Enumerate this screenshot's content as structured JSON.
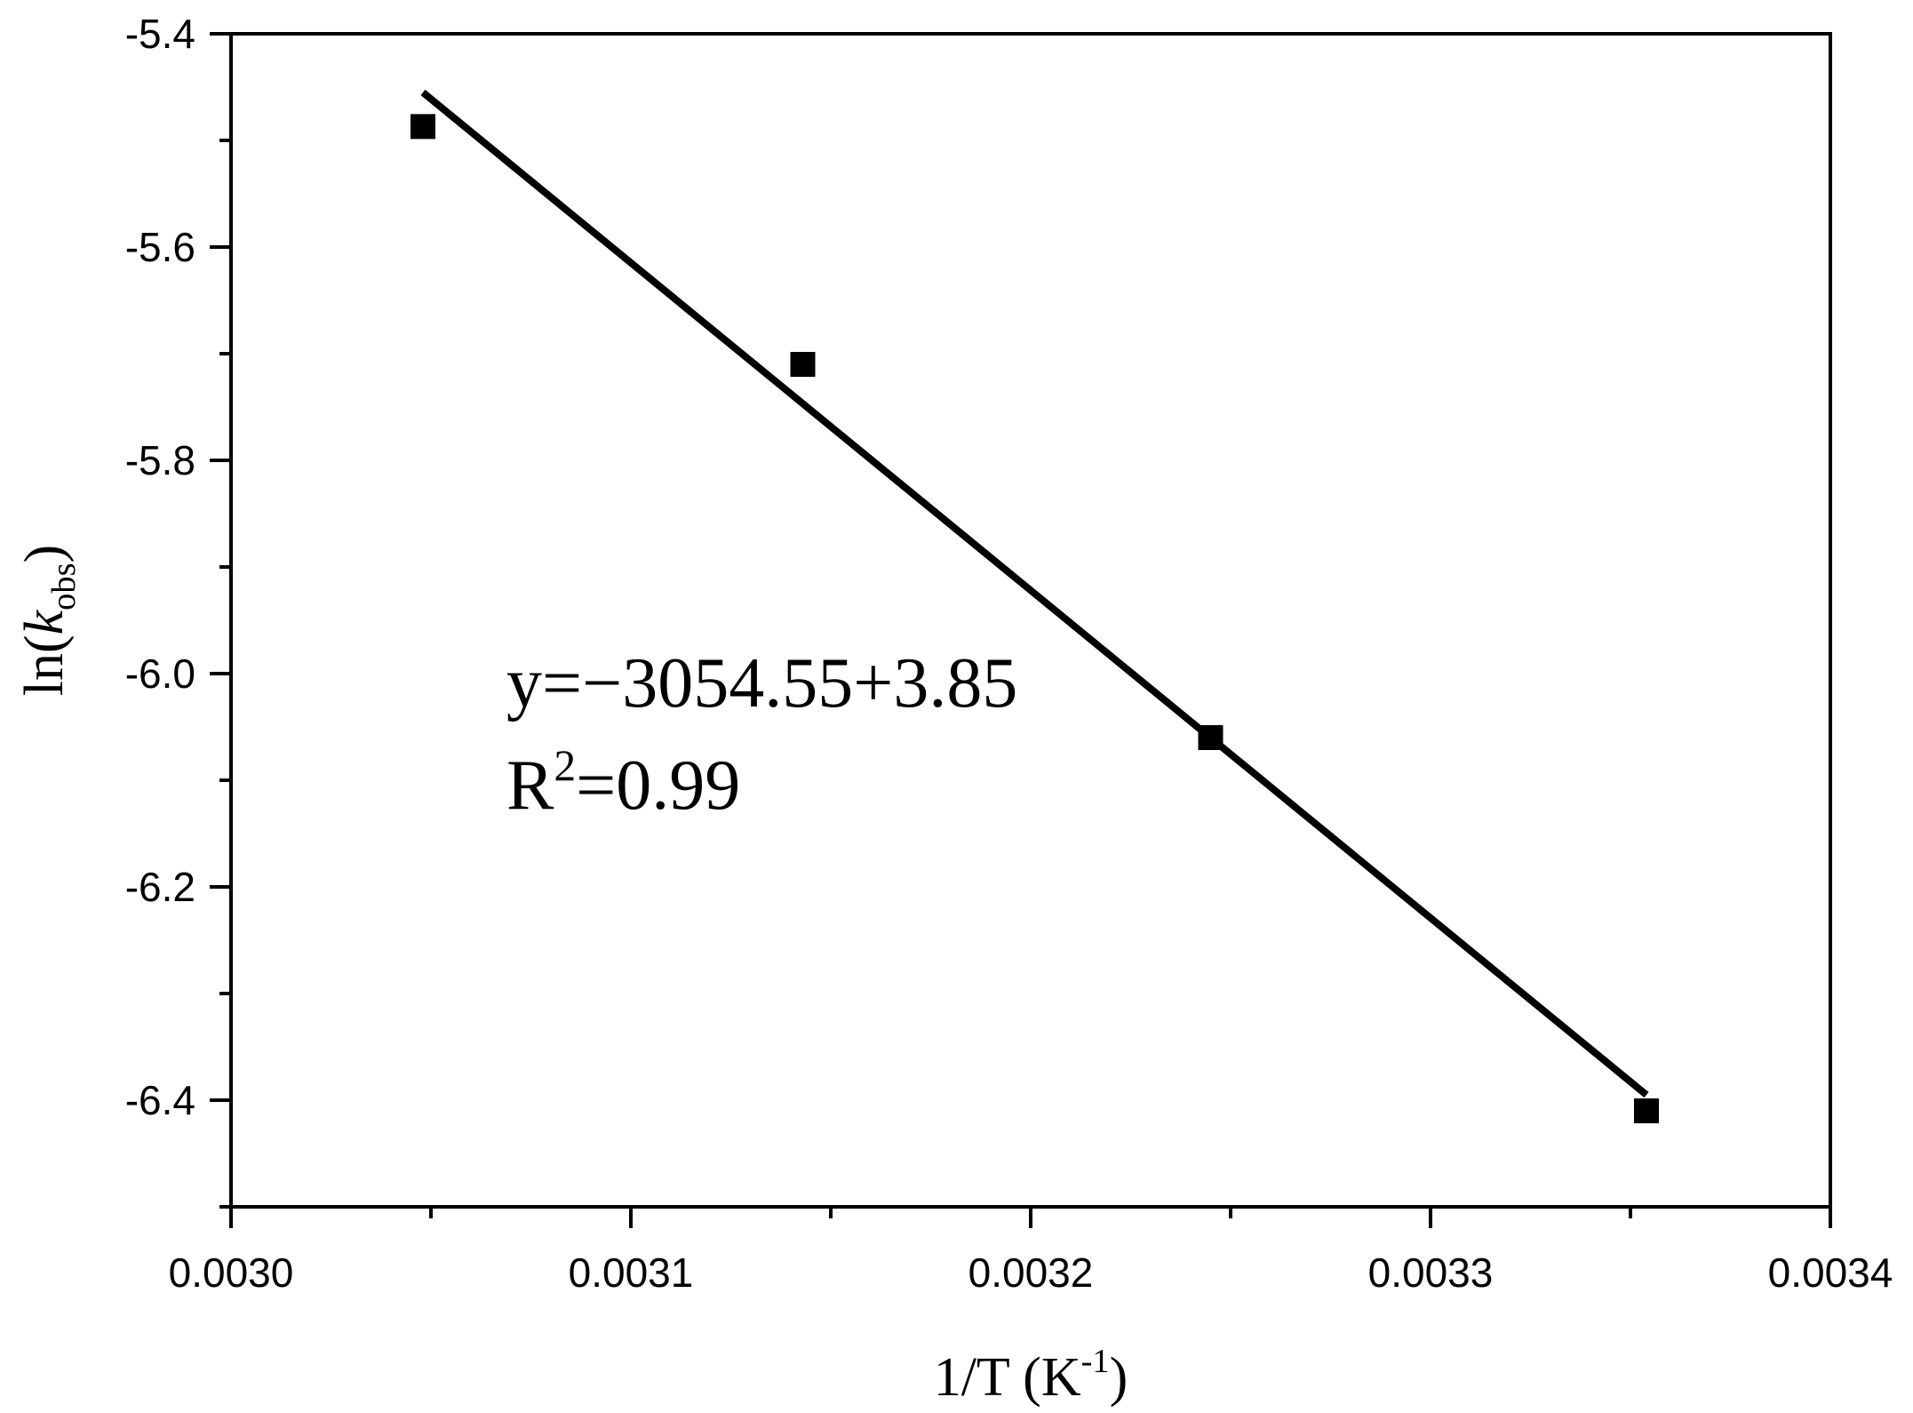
{
  "chart_data": {
    "type": "scatter",
    "xlabel": {
      "main": "1/T (K",
      "sup": "-1",
      "tail": ")"
    },
    "ylabel": {
      "pre": "ln(",
      "italic": "k",
      "sub": "obs",
      "post": ")"
    },
    "xlim": [
      0.003,
      0.0034
    ],
    "ylim": [
      -6.5,
      -5.4
    ],
    "x_ticks": [
      "0.0030",
      "0.0031",
      "0.0032",
      "0.0033",
      "0.0034"
    ],
    "y_ticks": [
      "-5.4",
      "-5.6",
      "-5.8",
      "-6.0",
      "-6.2",
      "-6.4"
    ],
    "points": [
      {
        "x": 0.003048,
        "y": -5.487
      },
      {
        "x": 0.003143,
        "y": -5.71
      },
      {
        "x": 0.003245,
        "y": -6.06
      },
      {
        "x": 0.003354,
        "y": -6.41
      }
    ],
    "fit_line": {
      "x": [
        0.003048,
        0.003354
      ],
      "y": [
        -5.455,
        -6.395
      ]
    },
    "equation": "y=−3054.55+3.85",
    "r2": {
      "label": "R",
      "sup": "2",
      "value": "=0.99"
    },
    "grid": false,
    "legend": "none"
  }
}
